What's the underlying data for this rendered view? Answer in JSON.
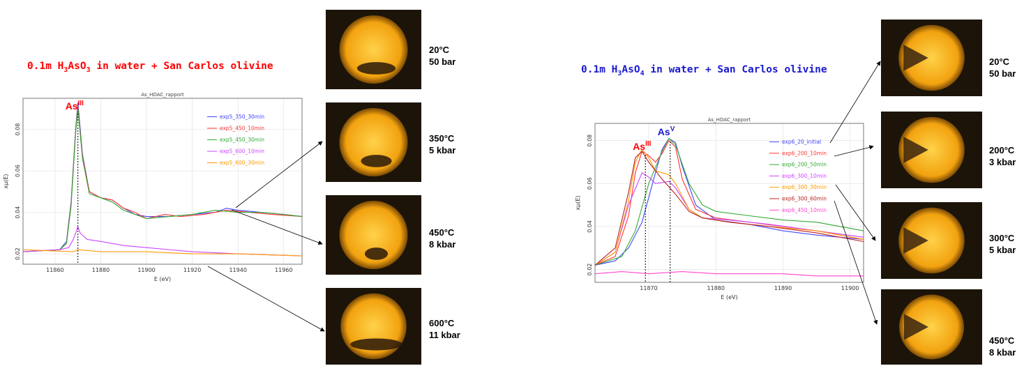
{
  "left_panel": {
    "title_parts": [
      "0.1m H",
      "3",
      "AsO",
      "3",
      " in water + San Carlos olivine"
    ],
    "title_color": "#ff0000",
    "photos": [
      {
        "line1": "20°C",
        "line2": "50 bar",
        "dark_fraction": 0.25
      },
      {
        "line1": "350°C",
        "line2": "5 kbar",
        "dark_fraction": 0.2
      },
      {
        "line1": "450°C",
        "line2": "8 kbar",
        "dark_fraction": 0.15
      },
      {
        "line1": "600°C",
        "line2": "11 kbar",
        "dark_fraction": 0.35
      }
    ]
  },
  "right_panel": {
    "title_parts": [
      "0.1m H",
      "3",
      "AsO",
      "4",
      " in water + San Carlos olivine"
    ],
    "title_color": "#1a1ad0",
    "photos": [
      {
        "line1": "20°C",
        "line2": "50 bar",
        "dark_fraction": 0.35
      },
      {
        "line1": "200°C",
        "line2": "3 kbar",
        "dark_fraction": 0.3
      },
      {
        "line1": "300°C",
        "line2": "5 kbar",
        "dark_fraction": 0.3
      },
      {
        "line1": "450°C",
        "line2": "8 kbar",
        "dark_fraction": 0.3
      }
    ]
  },
  "chart_data": [
    {
      "type": "line",
      "title": "As_HDAC_rapport",
      "xlabel": "E (eV)",
      "ylabel": "xμ(E)",
      "xlim": [
        11846,
        11968
      ],
      "ylim": [
        0.015,
        0.095
      ],
      "xticks": [
        11860,
        11880,
        11900,
        11920,
        11940,
        11960
      ],
      "yticks": [
        0.02,
        0.04,
        0.06,
        0.08
      ],
      "grid": true,
      "legend_position": "top-right",
      "annotation": {
        "text": "As",
        "sup": "III",
        "x": 11870,
        "color": "#ff0000"
      },
      "series": [
        {
          "name": "exp5_350_30min",
          "color": "#4444ff",
          "points": [
            [
              11846,
              0.021
            ],
            [
              11862,
              0.022
            ],
            [
              11865,
              0.026
            ],
            [
              11867,
              0.045
            ],
            [
              11869,
              0.08
            ],
            [
              11870,
              0.093
            ],
            [
              11872,
              0.068
            ],
            [
              11875,
              0.05
            ],
            [
              11880,
              0.047
            ],
            [
              11885,
              0.046
            ],
            [
              11890,
              0.042
            ],
            [
              11895,
              0.039
            ],
            [
              11900,
              0.038
            ],
            [
              11910,
              0.038
            ],
            [
              11920,
              0.039
            ],
            [
              11930,
              0.04
            ],
            [
              11935,
              0.042
            ],
            [
              11940,
              0.041
            ],
            [
              11950,
              0.04
            ],
            [
              11960,
              0.039
            ],
            [
              11968,
              0.038
            ]
          ]
        },
        {
          "name": "exp5_450_10min",
          "color": "#ff3333",
          "points": [
            [
              11846,
              0.021
            ],
            [
              11862,
              0.022
            ],
            [
              11865,
              0.025
            ],
            [
              11867,
              0.044
            ],
            [
              11869,
              0.079
            ],
            [
              11870,
              0.091
            ],
            [
              11872,
              0.067
            ],
            [
              11875,
              0.05
            ],
            [
              11880,
              0.047
            ],
            [
              11885,
              0.046
            ],
            [
              11890,
              0.042
            ],
            [
              11895,
              0.04
            ],
            [
              11900,
              0.037
            ],
            [
              11908,
              0.039
            ],
            [
              11915,
              0.038
            ],
            [
              11925,
              0.039
            ],
            [
              11935,
              0.041
            ],
            [
              11945,
              0.04
            ],
            [
              11955,
              0.039
            ],
            [
              11968,
              0.038
            ]
          ]
        },
        {
          "name": "exp5_450_30min",
          "color": "#33aa33",
          "points": [
            [
              11846,
              0.021
            ],
            [
              11862,
              0.022
            ],
            [
              11865,
              0.025
            ],
            [
              11867,
              0.043
            ],
            [
              11869,
              0.078
            ],
            [
              11870,
              0.09
            ],
            [
              11872,
              0.066
            ],
            [
              11875,
              0.049
            ],
            [
              11880,
              0.047
            ],
            [
              11885,
              0.045
            ],
            [
              11890,
              0.041
            ],
            [
              11895,
              0.039
            ],
            [
              11900,
              0.037
            ],
            [
              11910,
              0.038
            ],
            [
              11920,
              0.039
            ],
            [
              11930,
              0.041
            ],
            [
              11940,
              0.04
            ],
            [
              11950,
              0.04
            ],
            [
              11960,
              0.039
            ],
            [
              11968,
              0.038
            ]
          ]
        },
        {
          "name": "exp5_600_10min",
          "color": "#cc44ff",
          "points": [
            [
              11846,
              0.021
            ],
            [
              11862,
              0.022
            ],
            [
              11866,
              0.023
            ],
            [
              11868,
              0.027
            ],
            [
              11870,
              0.033
            ],
            [
              11871,
              0.03
            ],
            [
              11874,
              0.027
            ],
            [
              11880,
              0.026
            ],
            [
              11890,
              0.024
            ],
            [
              11900,
              0.023
            ],
            [
              11920,
              0.021
            ],
            [
              11940,
              0.02
            ],
            [
              11968,
              0.019
            ]
          ]
        },
        {
          "name": "exp5_600_30min",
          "color": "#ff9900",
          "points": [
            [
              11846,
              0.022
            ],
            [
              11868,
              0.021
            ],
            [
              11870,
              0.022
            ],
            [
              11880,
              0.021
            ],
            [
              11900,
              0.021
            ],
            [
              11920,
              0.02
            ],
            [
              11940,
              0.02
            ],
            [
              11968,
              0.019
            ]
          ]
        }
      ]
    },
    {
      "type": "line",
      "title": "As_HDAC_rapport",
      "xlabel": "E (eV)",
      "ylabel": "xμ(E)",
      "xlim": [
        11862,
        11902
      ],
      "ylim": [
        0.014,
        0.088
      ],
      "xticks": [
        11870,
        11880,
        11890,
        11900
      ],
      "yticks": [
        0.02,
        0.04,
        0.06,
        0.08
      ],
      "grid": true,
      "legend_position": "top-right",
      "annotations": [
        {
          "text": "As",
          "sup": "III",
          "x": 11869.5,
          "color": "#ff0000"
        },
        {
          "text": "As",
          "sup": "V",
          "x": 11873.2,
          "color": "#1a1ad0"
        }
      ],
      "series": [
        {
          "name": "exp6_20_initial",
          "color": "#4444ff",
          "points": [
            [
              11862,
              0.022
            ],
            [
              11865,
              0.024
            ],
            [
              11867,
              0.03
            ],
            [
              11869,
              0.042
            ],
            [
              11871,
              0.065
            ],
            [
              11872,
              0.076
            ],
            [
              11873,
              0.081
            ],
            [
              11874,
              0.079
            ],
            [
              11875,
              0.068
            ],
            [
              11877,
              0.05
            ],
            [
              11880,
              0.043
            ],
            [
              11885,
              0.041
            ],
            [
              11890,
              0.038
            ],
            [
              11895,
              0.036
            ],
            [
              11902,
              0.034
            ]
          ]
        },
        {
          "name": "exp6_200_10min",
          "color": "#ff3333",
          "points": [
            [
              11862,
              0.022
            ],
            [
              11865,
              0.026
            ],
            [
              11867,
              0.045
            ],
            [
              11868,
              0.065
            ],
            [
              11869,
              0.075
            ],
            [
              11870,
              0.073
            ],
            [
              11871,
              0.07
            ],
            [
              11872,
              0.074
            ],
            [
              11873,
              0.08
            ],
            [
              11874,
              0.077
            ],
            [
              11875,
              0.062
            ],
            [
              11877,
              0.048
            ],
            [
              11880,
              0.044
            ],
            [
              11885,
              0.042
            ],
            [
              11890,
              0.04
            ],
            [
              11895,
              0.038
            ],
            [
              11902,
              0.034
            ]
          ]
        },
        {
          "name": "exp6_200_50min",
          "color": "#33aa33",
          "points": [
            [
              11862,
              0.022
            ],
            [
              11866,
              0.026
            ],
            [
              11868,
              0.038
            ],
            [
              11870,
              0.06
            ],
            [
              11872,
              0.075
            ],
            [
              11873,
              0.081
            ],
            [
              11874,
              0.078
            ],
            [
              11876,
              0.06
            ],
            [
              11878,
              0.05
            ],
            [
              11880,
              0.047
            ],
            [
              11885,
              0.045
            ],
            [
              11890,
              0.043
            ],
            [
              11895,
              0.042
            ],
            [
              11902,
              0.038
            ]
          ]
        },
        {
          "name": "exp6_300_10min",
          "color": "#cc44ff",
          "points": [
            [
              11862,
              0.022
            ],
            [
              11865,
              0.028
            ],
            [
              11867,
              0.05
            ],
            [
              11869,
              0.065
            ],
            [
              11870,
              0.063
            ],
            [
              11871,
              0.06
            ],
            [
              11873,
              0.061
            ],
            [
              11874,
              0.058
            ],
            [
              11876,
              0.048
            ],
            [
              11878,
              0.044
            ],
            [
              11882,
              0.043
            ],
            [
              11888,
              0.041
            ],
            [
              11895,
              0.038
            ],
            [
              11902,
              0.035
            ]
          ]
        },
        {
          "name": "exp6_300_30min",
          "color": "#ff9900",
          "points": [
            [
              11862,
              0.022
            ],
            [
              11865,
              0.028
            ],
            [
              11867,
              0.052
            ],
            [
              11868,
              0.07
            ],
            [
              11869,
              0.076
            ],
            [
              11870,
              0.072
            ],
            [
              11871,
              0.066
            ],
            [
              11873,
              0.064
            ],
            [
              11874,
              0.06
            ],
            [
              11876,
              0.048
            ],
            [
              11878,
              0.044
            ],
            [
              11882,
              0.042
            ],
            [
              11888,
              0.04
            ],
            [
              11895,
              0.038
            ],
            [
              11902,
              0.034
            ]
          ]
        },
        {
          "name": "exp6_300_60min",
          "color": "#bb2222",
          "points": [
            [
              11862,
              0.022
            ],
            [
              11865,
              0.03
            ],
            [
              11867,
              0.056
            ],
            [
              11868,
              0.072
            ],
            [
              11869,
              0.075
            ],
            [
              11870,
              0.07
            ],
            [
              11872,
              0.062
            ],
            [
              11874,
              0.055
            ],
            [
              11876,
              0.047
            ],
            [
              11878,
              0.044
            ],
            [
              11882,
              0.042
            ],
            [
              11888,
              0.04
            ],
            [
              11895,
              0.037
            ],
            [
              11902,
              0.033
            ]
          ]
        },
        {
          "name": "exp6_450_10min",
          "color": "#ff44cc",
          "points": [
            [
              11862,
              0.018
            ],
            [
              11866,
              0.019
            ],
            [
              11870,
              0.018
            ],
            [
              11875,
              0.019
            ],
            [
              11880,
              0.018
            ],
            [
              11885,
              0.018
            ],
            [
              11890,
              0.018
            ],
            [
              11895,
              0.017
            ],
            [
              11902,
              0.017
            ]
          ]
        }
      ]
    }
  ]
}
